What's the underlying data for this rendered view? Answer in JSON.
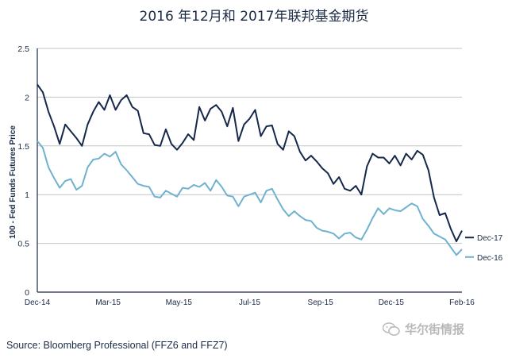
{
  "chart_data": {
    "type": "line",
    "title": "2016 年12月和 2017年联邦基金期货",
    "ylabel": "100 - Fed Funds Futures Price",
    "xlabel": "",
    "ylim": [
      0,
      2.5
    ],
    "yticks": [
      "0",
      "0.5",
      "1",
      "1.5",
      "2",
      "2.5"
    ],
    "xticks": [
      "Dec-14",
      "Mar-15",
      "May-15",
      "Jul-15",
      "Sep-15",
      "Dec-15",
      "Feb-16"
    ],
    "grid": true,
    "legend_position": "right",
    "series": [
      {
        "name": "Dec-17",
        "color": "#16284a",
        "values": [
          2.13,
          2.05,
          1.85,
          1.7,
          1.52,
          1.72,
          1.65,
          1.58,
          1.5,
          1.72,
          1.85,
          1.95,
          1.87,
          2.02,
          1.87,
          1.97,
          2.02,
          1.9,
          1.86,
          1.63,
          1.62,
          1.51,
          1.5,
          1.67,
          1.52,
          1.46,
          1.53,
          1.62,
          1.56,
          1.9,
          1.76,
          1.88,
          1.92,
          1.85,
          1.7,
          1.89,
          1.55,
          1.72,
          1.78,
          1.87,
          1.6,
          1.7,
          1.71,
          1.52,
          1.46,
          1.65,
          1.6,
          1.44,
          1.35,
          1.4,
          1.34,
          1.27,
          1.22,
          1.11,
          1.18,
          1.06,
          1.04,
          1.09,
          1.0,
          1.29,
          1.42,
          1.38,
          1.38,
          1.32,
          1.4,
          1.3,
          1.42,
          1.36,
          1.45,
          1.41,
          1.25,
          0.97,
          0.79,
          0.81,
          0.65,
          0.52,
          0.63
        ]
      },
      {
        "name": "Dec-16",
        "color": "#6fb2cf",
        "values": [
          1.55,
          1.48,
          1.28,
          1.17,
          1.07,
          1.14,
          1.16,
          1.05,
          1.09,
          1.28,
          1.36,
          1.37,
          1.42,
          1.39,
          1.44,
          1.31,
          1.25,
          1.18,
          1.11,
          1.09,
          1.08,
          0.98,
          0.97,
          1.04,
          1.01,
          0.98,
          1.07,
          1.06,
          1.1,
          1.08,
          1.12,
          1.04,
          1.15,
          1.08,
          0.99,
          0.98,
          0.88,
          0.98,
          1.0,
          1.02,
          0.92,
          1.04,
          1.06,
          0.95,
          0.85,
          0.78,
          0.83,
          0.78,
          0.74,
          0.73,
          0.66,
          0.63,
          0.62,
          0.6,
          0.55,
          0.6,
          0.61,
          0.56,
          0.54,
          0.64,
          0.76,
          0.86,
          0.8,
          0.86,
          0.84,
          0.83,
          0.87,
          0.91,
          0.88,
          0.75,
          0.68,
          0.6,
          0.57,
          0.54,
          0.46,
          0.38,
          0.44
        ]
      }
    ]
  },
  "source_note": "Source: Bloomberg Professional (FFZ6 and FFZ7)",
  "watermark_text": "华尔街情报"
}
